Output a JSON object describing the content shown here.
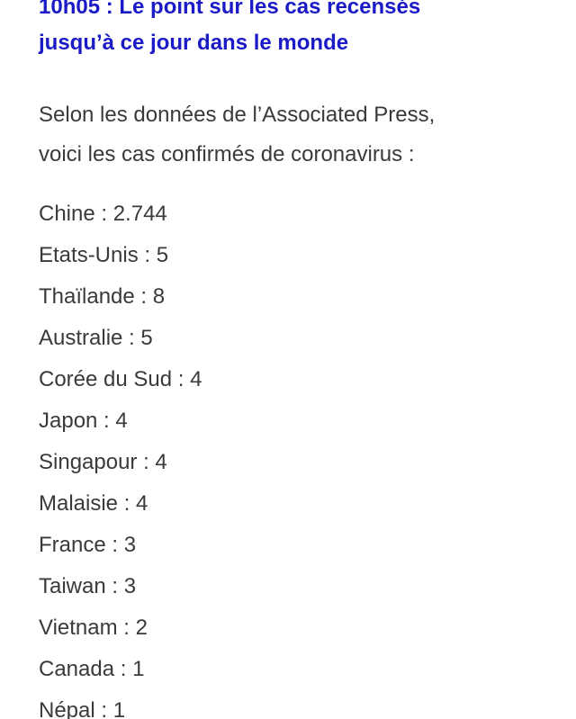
{
  "article": {
    "headline_line1": "10h05 : Le point sur les cas recensés",
    "headline_line2": "jusqu’à ce jour dans le monde",
    "intro_line1": "Selon les données de l’Associated Press,",
    "intro_line2": "voici les cas confirmés de coronavirus :",
    "cases": [
      "Chine : 2.744",
      "Etats-Unis : 5",
      "Thaïlande : 8",
      "Australie : 5",
      "Corée du Sud : 4",
      "Japon : 4",
      "Singapour : 4",
      "Malaisie : 4",
      "France : 3",
      "Taiwan : 3",
      "Vietnam : 2",
      "Canada : 1",
      "Népal : 1"
    ]
  },
  "colors": {
    "headline": "#1a1ac7",
    "body_text": "#3a3a3a",
    "background": "#ffffff"
  }
}
